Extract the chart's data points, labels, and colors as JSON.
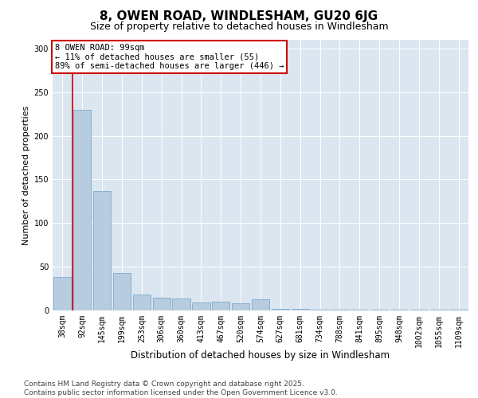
{
  "title1": "8, OWEN ROAD, WINDLESHAM, GU20 6JG",
  "title2": "Size of property relative to detached houses in Windlesham",
  "xlabel": "Distribution of detached houses by size in Windlesham",
  "ylabel": "Number of detached properties",
  "bar_color": "#b8ccdf",
  "bar_edge_color": "#7aaace",
  "plot_bg_color": "#dce6f0",
  "grid_color": "#ffffff",
  "fig_bg_color": "#ffffff",
  "vline_color": "#cc0000",
  "annotation_box_color": "#cc0000",
  "categories": [
    "38sqm",
    "92sqm",
    "145sqm",
    "199sqm",
    "253sqm",
    "306sqm",
    "360sqm",
    "413sqm",
    "467sqm",
    "520sqm",
    "574sqm",
    "627sqm",
    "681sqm",
    "734sqm",
    "788sqm",
    "841sqm",
    "895sqm",
    "948sqm",
    "1002sqm",
    "1055sqm",
    "1109sqm"
  ],
  "values": [
    38,
    230,
    137,
    43,
    18,
    15,
    14,
    9,
    10,
    8,
    13,
    2,
    2,
    1,
    1,
    1,
    1,
    1,
    1,
    1,
    1
  ],
  "vline_x": 0.5,
  "annotation_text": "8 OWEN ROAD: 99sqm\n← 11% of detached houses are smaller (55)\n89% of semi-detached houses are larger (446) →",
  "footer_text": "Contains HM Land Registry data © Crown copyright and database right 2025.\nContains public sector information licensed under the Open Government Licence v3.0.",
  "ylim": [
    0,
    310
  ],
  "yticks": [
    0,
    50,
    100,
    150,
    200,
    250,
    300
  ],
  "title1_fontsize": 11,
  "title2_fontsize": 9,
  "xlabel_fontsize": 8.5,
  "ylabel_fontsize": 8,
  "tick_fontsize": 7,
  "annotation_fontsize": 7.5,
  "footer_fontsize": 6.5
}
